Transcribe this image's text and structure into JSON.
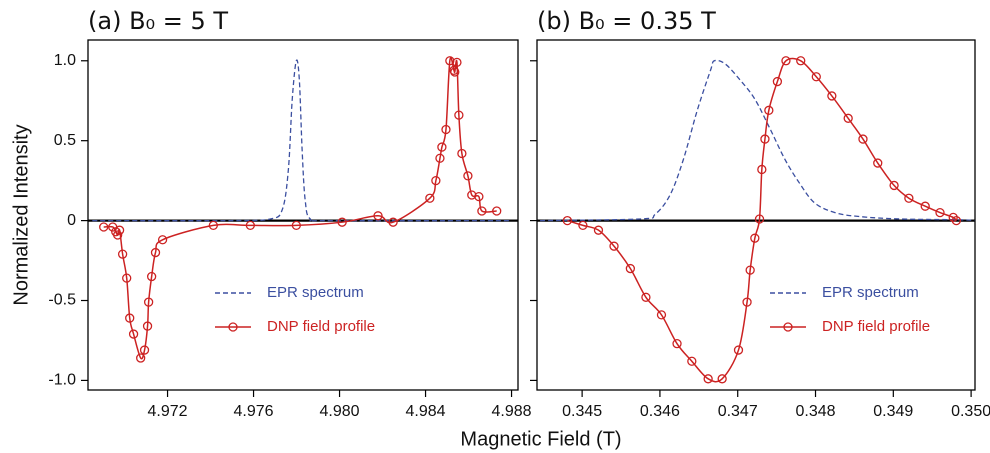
{
  "xlabel": "Magnetic Field (T)",
  "ylabel": "Normalized Intensity",
  "chart_data": [
    {
      "type": "line",
      "title": "(a) B₀ = 5 T",
      "xlim": [
        4.9683,
        4.9883
      ],
      "ylim": [
        -1.06,
        1.13
      ],
      "xticks": [
        4.972,
        4.976,
        {
          "value": 4.98,
          "label": "4.980"
        },
        4.984,
        4.988
      ],
      "yticks": [
        {
          "value": -1,
          "label": "-1.0"
        },
        -0.5,
        0,
        0.5,
        {
          "value": 1,
          "label": "1.0"
        }
      ],
      "legend": "lower-center",
      "series": [
        {
          "name": "EPR spectrum",
          "color": "#3b4fa0",
          "style": "dashed",
          "x": [
            4.9685,
            4.97492,
            4.97678,
            4.97734,
            4.97762,
            4.9778,
            4.97799,
            4.97813,
            4.97826,
            4.9784,
            4.97864,
            4.97956,
            4.988
          ],
          "values": [
            0,
            0,
            0.01,
            0.07,
            0.32,
            0.76,
            1.0,
            0.88,
            0.44,
            0.13,
            0.01,
            0,
            0
          ]
        },
        {
          "name": "DNP field profile",
          "color": "#cc2222",
          "style": "solid",
          "marker": "circle",
          "x": [
            4.96903,
            4.96945,
            4.96959,
            4.96968,
            4.96977,
            4.96991,
            4.9701,
            4.97024,
            4.97042,
            4.97075,
            4.97093,
            4.97107,
            4.97112,
            4.97126,
            4.97144,
            4.97177,
            4.97413,
            4.97585,
            4.97799,
            4.98012,
            4.98179,
            4.98249,
            4.9842,
            4.98448,
            4.98467,
            4.98476,
            4.98495,
            4.98513,
            4.98532,
            4.98536,
            4.98546,
            4.98555,
            4.98569,
            4.98597,
            4.98615,
            4.98648,
            4.98662,
            4.98731
          ],
          "values": [
            -0.04,
            -0.04,
            -0.07,
            -0.09,
            -0.06,
            -0.21,
            -0.36,
            -0.61,
            -0.71,
            -0.86,
            -0.81,
            -0.66,
            -0.51,
            -0.35,
            -0.2,
            -0.12,
            -0.03,
            -0.03,
            -0.03,
            -0.01,
            0.03,
            -0.01,
            0.14,
            0.25,
            0.39,
            0.46,
            0.57,
            1.0,
            0.94,
            0.93,
            0.99,
            0.66,
            0.42,
            0.28,
            0.16,
            0.15,
            0.06,
            0.06
          ]
        }
      ]
    },
    {
      "type": "line",
      "title": "(b) B₀ = 0.35 T",
      "xlim": [
        0.34442,
        0.35005
      ],
      "ylim": [
        -1.06,
        1.13
      ],
      "xticks": [
        0.345,
        0.346,
        0.347,
        0.348,
        0.349,
        {
          "value": 0.35,
          "label": "0.350"
        }
      ],
      "legend": "lower-right",
      "series": [
        {
          "name": "EPR spectrum",
          "color": "#3b4fa0",
          "style": "dashed",
          "x": [
            0.34446,
            0.34575,
            0.34594,
            0.34613,
            0.3463,
            0.34648,
            0.34665,
            0.3467,
            0.34684,
            0.34703,
            0.34722,
            0.34742,
            0.34761,
            0.3478,
            0.34799,
            0.34825,
            0.34857,
            0.34909,
            0.34986,
            0.35005
          ],
          "values": [
            0,
            0.01,
            0.04,
            0.16,
            0.38,
            0.69,
            0.94,
            1.0,
            0.98,
            0.88,
            0.76,
            0.57,
            0.38,
            0.23,
            0.11,
            0.05,
            0.025,
            0.01,
            0.005,
            0
          ]
        },
        {
          "name": "DNP field profile",
          "color": "#cc2222",
          "style": "solid",
          "marker": "circle",
          "x": [
            0.34481,
            0.34501,
            0.34521,
            0.34541,
            0.34562,
            0.34582,
            0.34602,
            0.34622,
            0.34641,
            0.34662,
            0.3468,
            0.34701,
            0.34712,
            0.34716,
            0.34722,
            0.34728,
            0.34731,
            0.34735,
            0.3474,
            0.34751,
            0.34762,
            0.34781,
            0.34801,
            0.34821,
            0.34842,
            0.34861,
            0.3488,
            0.34901,
            0.3492,
            0.34941,
            0.3496,
            0.34977,
            0.34981
          ],
          "values": [
            0,
            -0.03,
            -0.06,
            -0.16,
            -0.3,
            -0.48,
            -0.59,
            -0.77,
            -0.88,
            -0.99,
            -0.99,
            -0.81,
            -0.51,
            -0.31,
            -0.11,
            0.01,
            0.32,
            0.51,
            0.69,
            0.87,
            1.0,
            1.0,
            0.9,
            0.78,
            0.64,
            0.51,
            0.36,
            0.22,
            0.14,
            0.09,
            0.05,
            0.02,
            0
          ]
        }
      ]
    }
  ]
}
